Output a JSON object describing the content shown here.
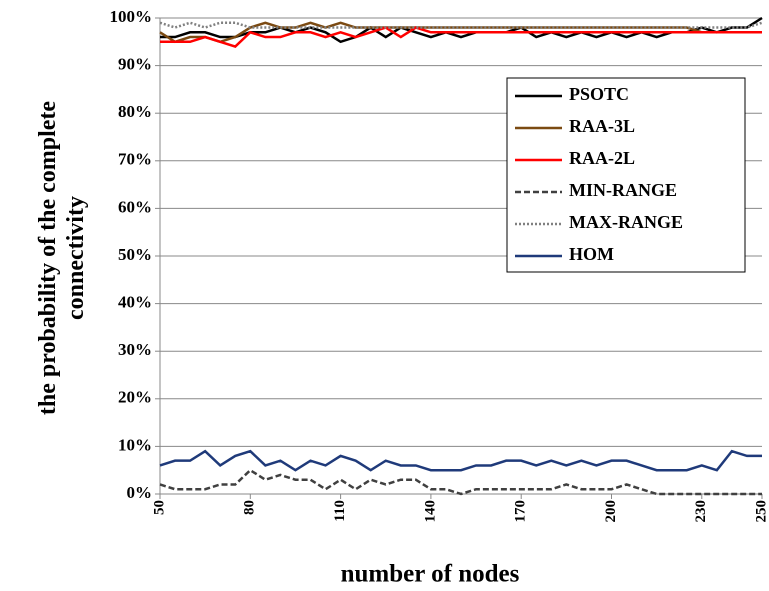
{
  "chart_data": {
    "type": "line",
    "x_label": "number of nodes",
    "y_label": "the probability of the complete connectivity",
    "x": [
      50,
      55,
      60,
      65,
      70,
      75,
      80,
      85,
      90,
      95,
      100,
      105,
      110,
      115,
      120,
      125,
      130,
      135,
      140,
      145,
      150,
      155,
      160,
      165,
      170,
      175,
      180,
      185,
      190,
      195,
      200,
      205,
      210,
      215,
      220,
      225,
      230,
      235,
      240,
      245,
      250
    ],
    "series": [
      {
        "name": "PSOTC",
        "color": "#000000",
        "dash": "solid",
        "values": [
          96,
          96,
          97,
          97,
          96,
          96,
          97,
          97,
          98,
          97,
          98,
          97,
          95,
          96,
          98,
          96,
          98,
          97,
          96,
          97,
          96,
          97,
          97,
          97,
          98,
          96,
          97,
          96,
          97,
          96,
          97,
          96,
          97,
          96,
          97,
          97,
          98,
          97,
          98,
          98,
          100
        ]
      },
      {
        "name": "RAA-3L",
        "color": "#7b4a12",
        "dash": "solid",
        "values": [
          97,
          95,
          96,
          96,
          95,
          96,
          98,
          99,
          98,
          98,
          99,
          98,
          99,
          98,
          98,
          98,
          98,
          98,
          98,
          98,
          98,
          98,
          98,
          98,
          98,
          98,
          98,
          98,
          98,
          98,
          98,
          98,
          98,
          98,
          98,
          98,
          97,
          97,
          97,
          97,
          97
        ]
      },
      {
        "name": "RAA-2L",
        "color": "#ff0000",
        "dash": "solid",
        "values": [
          95,
          95,
          95,
          96,
          95,
          94,
          97,
          96,
          96,
          97,
          97,
          96,
          97,
          96,
          97,
          98,
          96,
          98,
          97,
          97,
          97,
          97,
          97,
          97,
          97,
          97,
          97,
          97,
          97,
          97,
          97,
          97,
          97,
          97,
          97,
          97,
          97,
          97,
          97,
          97,
          97
        ]
      },
      {
        "name": "MIN-RANGE",
        "color": "#404040",
        "dash": "dashed",
        "values": [
          2,
          1,
          1,
          1,
          2,
          2,
          5,
          3,
          4,
          3,
          3,
          1,
          3,
          1,
          3,
          2,
          3,
          3,
          1,
          1,
          0,
          1,
          1,
          1,
          1,
          1,
          1,
          2,
          1,
          1,
          1,
          2,
          1,
          0,
          0,
          0,
          0,
          0,
          0,
          0,
          0
        ]
      },
      {
        "name": "MAX-RANGE",
        "color": "#808080",
        "dash": "dotted",
        "values": [
          99,
          98,
          99,
          98,
          99,
          99,
          98,
          98,
          98,
          98,
          98,
          98,
          98,
          98,
          98,
          98,
          98,
          98,
          98,
          98,
          98,
          98,
          98,
          98,
          98,
          98,
          98,
          98,
          98,
          98,
          98,
          98,
          98,
          98,
          98,
          98,
          98,
          98,
          98,
          98,
          99
        ]
      },
      {
        "name": "HOM",
        "color": "#1f3a7a",
        "dash": "solid",
        "values": [
          6,
          7,
          7,
          9,
          6,
          8,
          9,
          6,
          7,
          5,
          7,
          6,
          8,
          7,
          5,
          7,
          6,
          6,
          5,
          5,
          5,
          6,
          6,
          7,
          7,
          6,
          7,
          6,
          7,
          6,
          7,
          7,
          6,
          5,
          5,
          5,
          6,
          5,
          9,
          8,
          8
        ]
      }
    ],
    "xlim": [
      50,
      250
    ],
    "xticks": [
      50,
      80,
      110,
      140,
      170,
      200,
      230,
      250
    ],
    "ylim": [
      0,
      100
    ],
    "yticks": [
      {
        "value": 0,
        "label": "0%"
      },
      {
        "value": 10,
        "label": "10%"
      },
      {
        "value": 20,
        "label": "20%"
      },
      {
        "value": 30,
        "label": "30%"
      },
      {
        "value": 40,
        "label": "40%"
      },
      {
        "value": 50,
        "label": "50%"
      },
      {
        "value": 60,
        "label": "60%"
      },
      {
        "value": 70,
        "label": "70%"
      },
      {
        "value": 80,
        "label": "80%"
      },
      {
        "value": 90,
        "label": "90%"
      },
      {
        "value": 100,
        "label": "100%"
      }
    ],
    "grid": true,
    "legend": "upper-right"
  }
}
